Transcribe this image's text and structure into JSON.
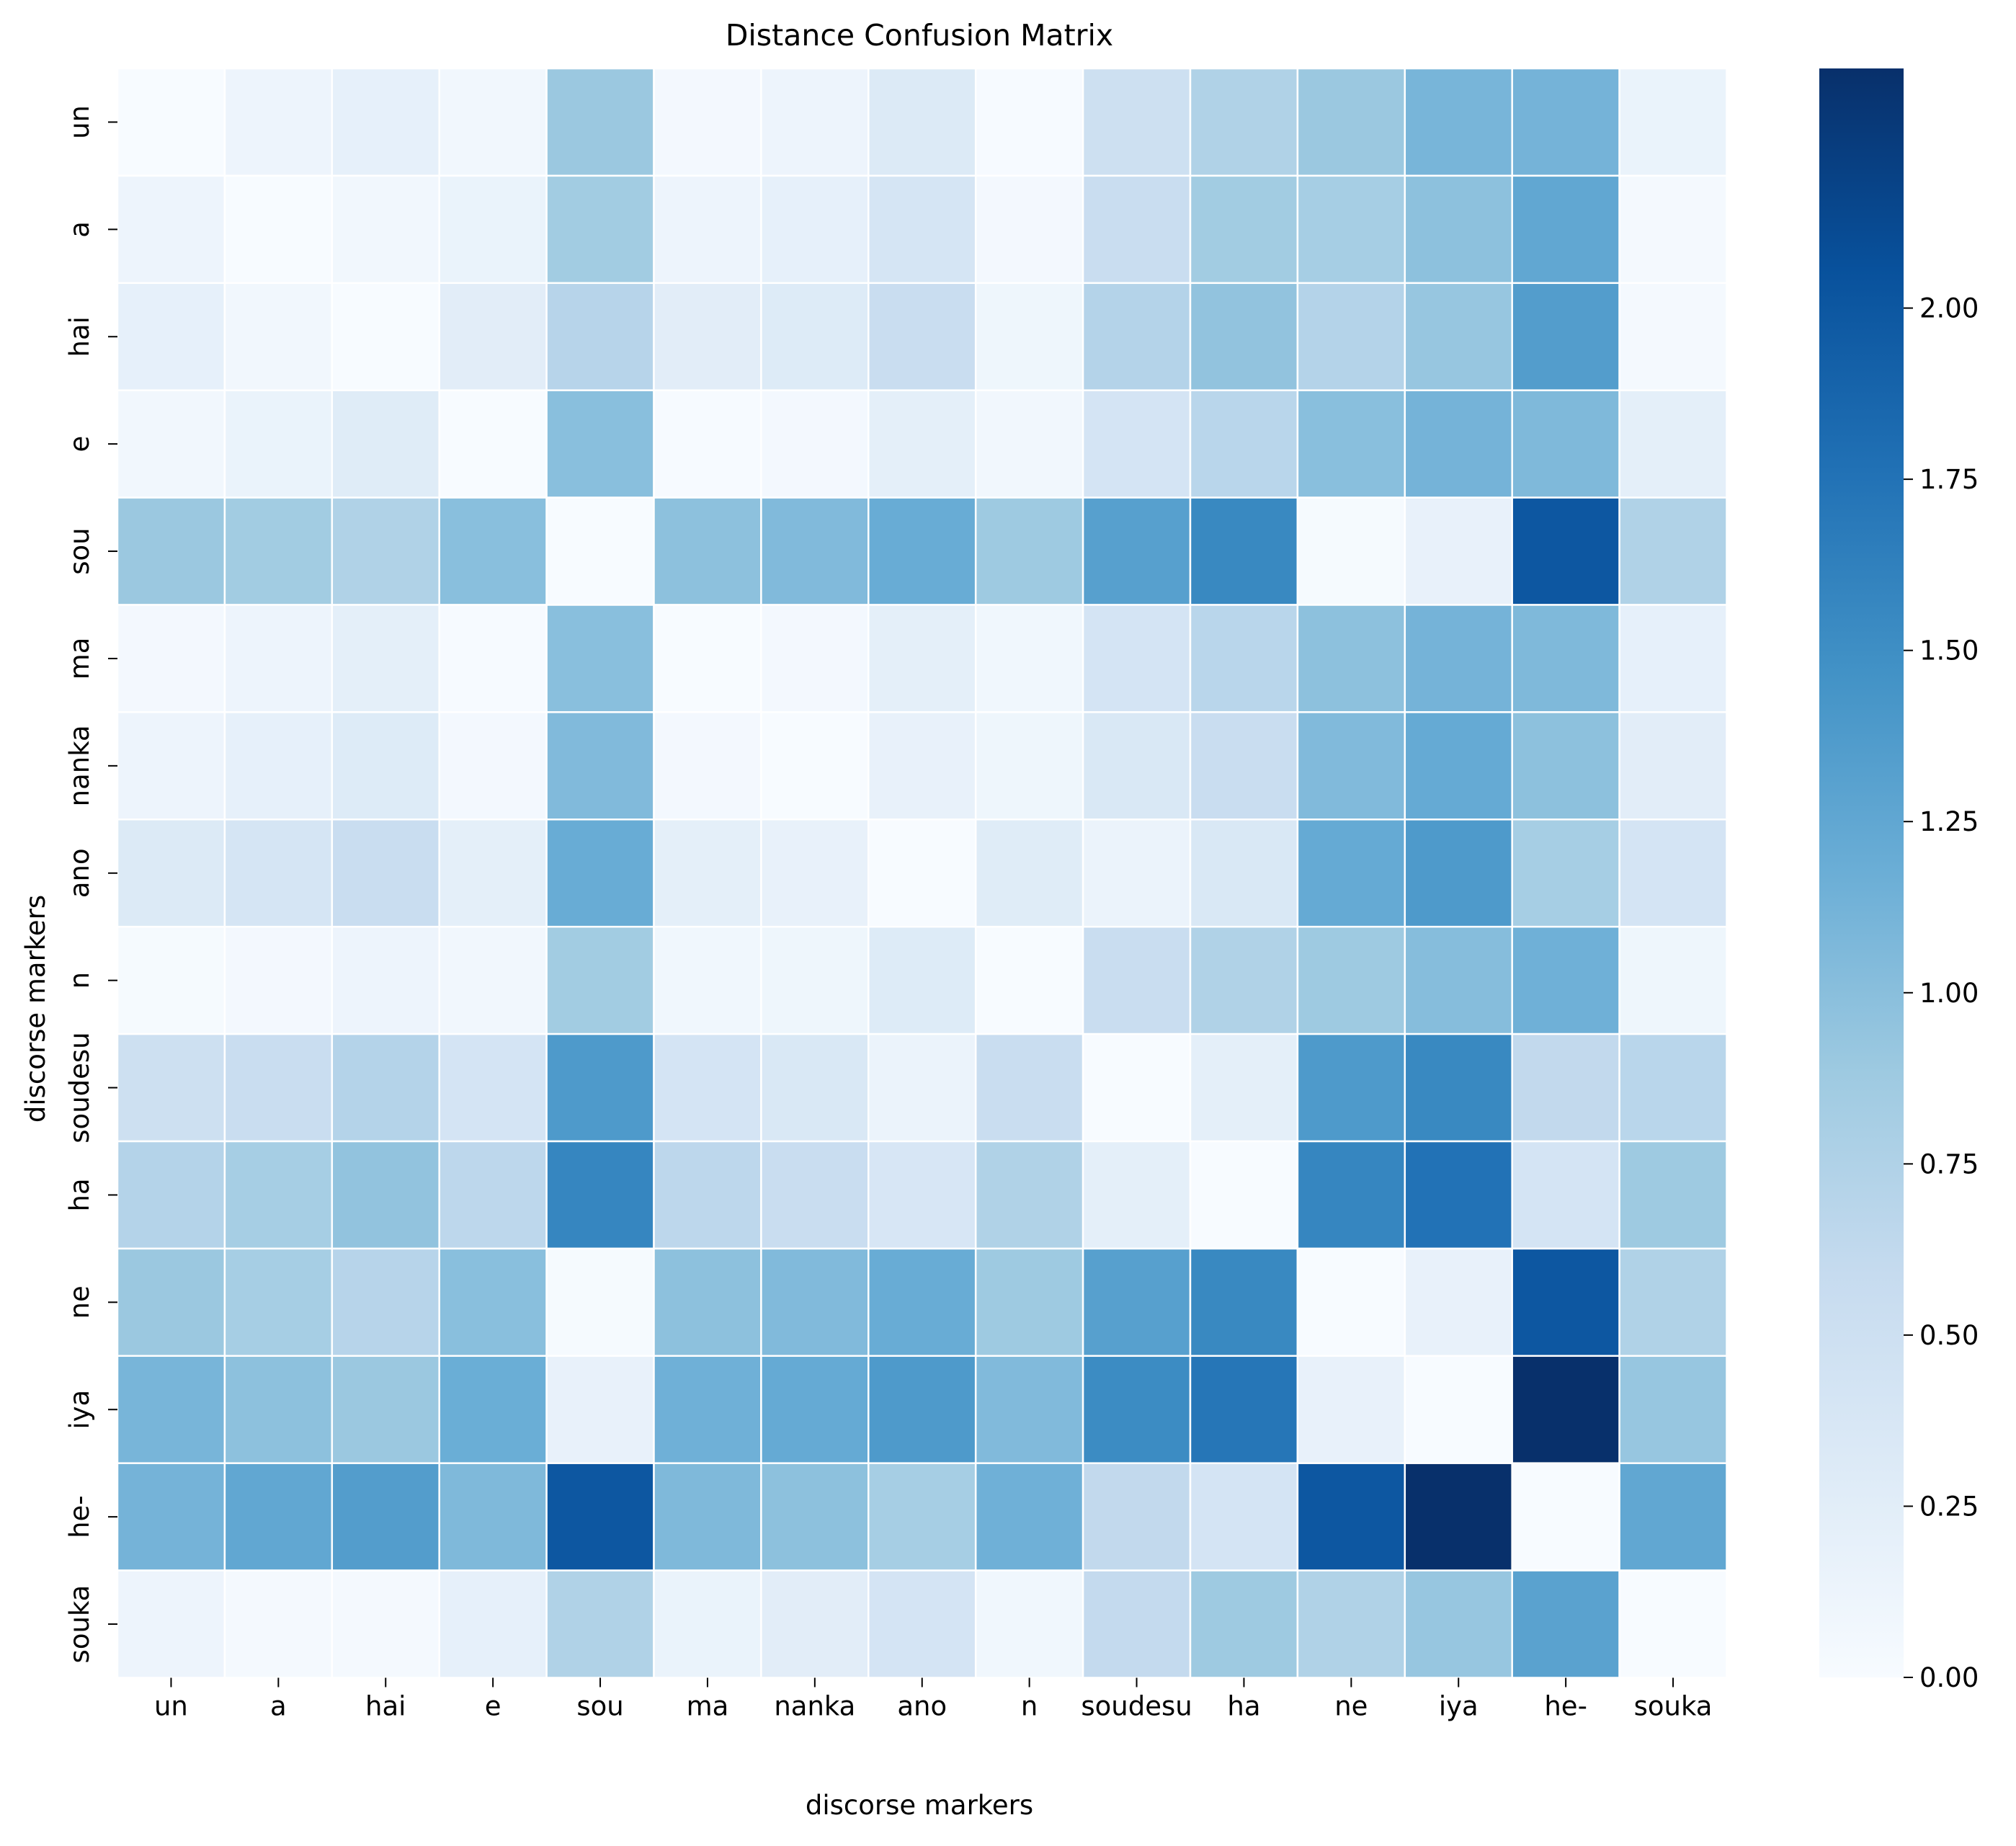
{
  "chart_data": {
    "type": "heatmap",
    "title": "Distance Confusion Matrix",
    "xlabel": "discorse markers",
    "ylabel": "discorse markers",
    "labels": [
      "un",
      "a",
      "hai",
      "e",
      "sou",
      "ma",
      "nanka",
      "ano",
      "n",
      "soudesu",
      "ha",
      "ne",
      "iya",
      "he-",
      "souka"
    ],
    "values": [
      [
        0.0,
        0.12,
        0.2,
        0.07,
        0.9,
        0.05,
        0.12,
        0.32,
        0.01,
        0.5,
        0.75,
        0.9,
        1.1,
        1.12,
        0.15
      ],
      [
        0.12,
        0.0,
        0.07,
        0.15,
        0.85,
        0.12,
        0.2,
        0.4,
        0.05,
        0.55,
        0.85,
        0.82,
        0.98,
        1.25,
        0.04
      ],
      [
        0.2,
        0.07,
        0.0,
        0.25,
        0.7,
        0.25,
        0.3,
        0.55,
        0.1,
        0.72,
        0.95,
        0.72,
        0.92,
        1.35,
        0.04
      ],
      [
        0.07,
        0.15,
        0.28,
        0.0,
        1.0,
        0.01,
        0.05,
        0.22,
        0.07,
        0.42,
        0.68,
        1.0,
        1.12,
        1.06,
        0.22
      ],
      [
        0.9,
        0.85,
        0.75,
        1.0,
        0.0,
        0.98,
        1.05,
        1.2,
        0.88,
        1.32,
        1.55,
        0.02,
        0.18,
        2.0,
        0.75
      ],
      [
        0.05,
        0.12,
        0.22,
        0.01,
        1.0,
        0.0,
        0.05,
        0.22,
        0.08,
        0.42,
        0.68,
        0.98,
        1.12,
        1.06,
        0.2
      ],
      [
        0.12,
        0.2,
        0.3,
        0.05,
        1.05,
        0.05,
        0.0,
        0.18,
        0.1,
        0.35,
        0.55,
        1.05,
        1.22,
        0.98,
        0.25
      ],
      [
        0.32,
        0.4,
        0.55,
        0.22,
        1.2,
        0.22,
        0.18,
        0.0,
        0.28,
        0.14,
        0.35,
        1.22,
        1.38,
        0.82,
        0.42
      ],
      [
        0.02,
        0.05,
        0.12,
        0.07,
        0.85,
        0.08,
        0.1,
        0.3,
        0.0,
        0.55,
        0.75,
        0.88,
        1.02,
        1.15,
        0.1
      ],
      [
        0.5,
        0.55,
        0.72,
        0.42,
        1.38,
        0.42,
        0.35,
        0.14,
        0.55,
        0.0,
        0.22,
        1.38,
        1.55,
        0.62,
        0.68
      ],
      [
        0.72,
        0.82,
        0.95,
        0.65,
        1.58,
        0.65,
        0.55,
        0.38,
        0.75,
        0.22,
        0.0,
        1.58,
        1.75,
        0.42,
        0.88
      ],
      [
        0.9,
        0.82,
        0.7,
        1.0,
        0.02,
        0.98,
        1.05,
        1.2,
        0.88,
        1.32,
        1.55,
        0.0,
        0.18,
        2.0,
        0.75
      ],
      [
        1.1,
        0.98,
        0.9,
        1.18,
        0.18,
        1.15,
        1.22,
        1.38,
        1.05,
        1.52,
        1.72,
        0.18,
        0.0,
        2.35,
        0.92
      ],
      [
        1.12,
        1.25,
        1.35,
        1.06,
        2.0,
        1.06,
        0.98,
        0.82,
        1.15,
        0.62,
        0.42,
        2.0,
        2.35,
        0.0,
        1.25
      ],
      [
        0.12,
        0.04,
        0.04,
        0.2,
        0.75,
        0.15,
        0.25,
        0.42,
        0.08,
        0.6,
        0.88,
        0.75,
        0.92,
        1.3,
        0.0
      ]
    ],
    "colorbar": {
      "min": 0.0,
      "max": 2.35,
      "cmap": "Blues",
      "ticks": [
        0.0,
        0.25,
        0.5,
        0.75,
        1.0,
        1.25,
        1.5,
        1.75,
        2.0
      ],
      "tick_labels": [
        "0.00",
        "0.25",
        "0.50",
        "0.75",
        "1.00",
        "1.25",
        "1.50",
        "1.75",
        "2.00"
      ]
    },
    "grid": true
  }
}
